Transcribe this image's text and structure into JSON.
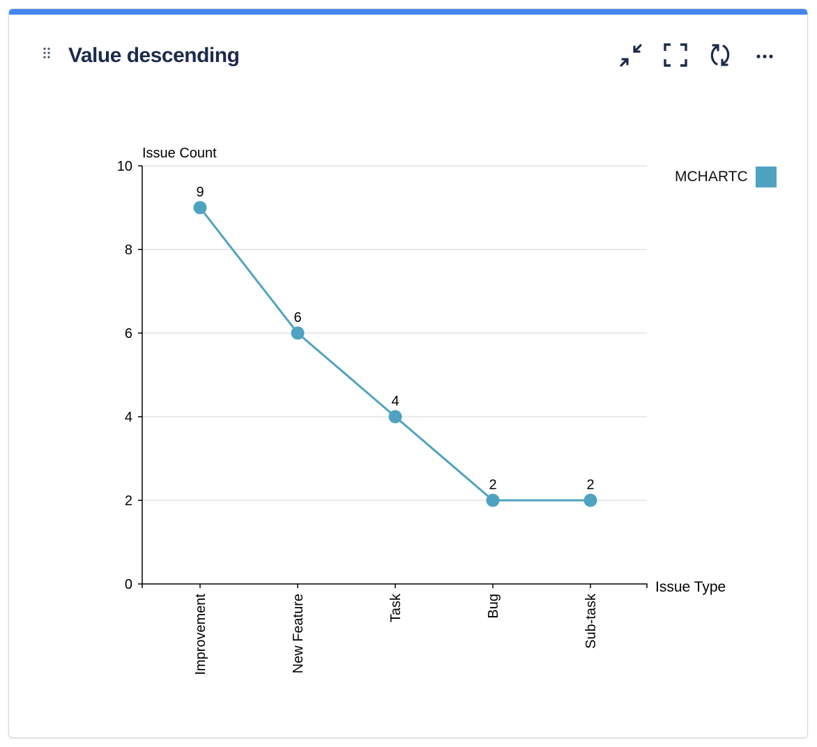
{
  "header": {
    "title": "Value descending",
    "icons": [
      "drag-handle-icon",
      "minimize-icon",
      "fullscreen-icon",
      "refresh-icon",
      "more-icon"
    ]
  },
  "chart_data": {
    "type": "line",
    "categories": [
      "Improvement",
      "New Feature",
      "Task",
      "Bug",
      "Sub-task"
    ],
    "series": [
      {
        "name": "MCHARTC",
        "values": [
          9,
          6,
          4,
          2,
          2
        ],
        "color": "#4fa3c1"
      }
    ],
    "data_labels": [
      "9",
      "6",
      "4",
      "2",
      "2"
    ],
    "xlabel": "Issue Type",
    "ylabel": "Issue Count",
    "ylim": [
      0,
      10
    ],
    "yticks": [
      "0",
      "2",
      "4",
      "6",
      "8",
      "10"
    ],
    "grid": true,
    "legend": "top-right"
  }
}
